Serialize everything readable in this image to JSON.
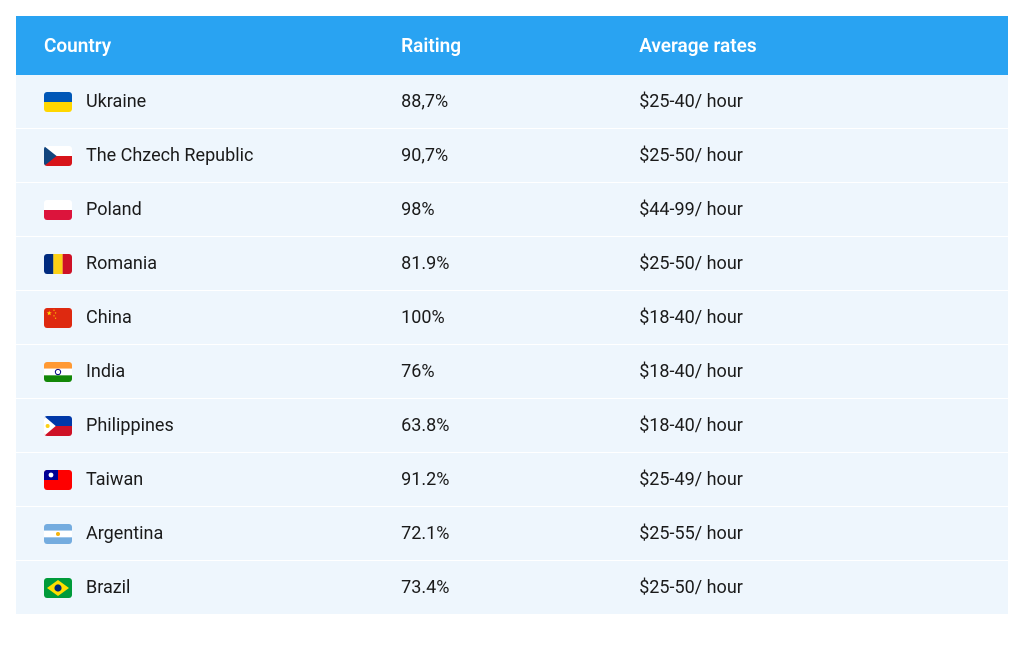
{
  "table": {
    "header_bg": "#29a3f2",
    "header_text_color": "#ffffff",
    "header_fontsize": 19,
    "row_bg": "#eef6fd",
    "row_text_color": "#1a1a1a",
    "row_fontsize": 18,
    "row_border_color": "#ffffff",
    "columns": [
      {
        "key": "country",
        "label": "Country"
      },
      {
        "key": "rating",
        "label": "Raiting"
      },
      {
        "key": "rates",
        "label": "Average rates"
      }
    ],
    "rows": [
      {
        "country": "Ukraine",
        "rating": "88,7%",
        "rates": "$25-40/ hour",
        "flag": "ukraine"
      },
      {
        "country": "The Chzech Republic",
        "rating": "90,7%",
        "rates": "$25-50/ hour",
        "flag": "czech"
      },
      {
        "country": "Poland",
        "rating": "98%",
        "rates": "$44-99/ hour",
        "flag": "poland"
      },
      {
        "country": "Romania",
        "rating": "81.9%",
        "rates": "$25-50/ hour",
        "flag": "romania"
      },
      {
        "country": "China",
        "rating": "100%",
        "rates": "$18-40/ hour",
        "flag": "china"
      },
      {
        "country": "India",
        "rating": "76%",
        "rates": "$18-40/ hour",
        "flag": "india"
      },
      {
        "country": "Philippines",
        "rating": "63.8%",
        "rates": "$18-40/ hour",
        "flag": "philippines"
      },
      {
        "country": "Taiwan",
        "rating": "91.2%",
        "rates": "$25-49/ hour",
        "flag": "taiwan"
      },
      {
        "country": "Argentina",
        "rating": "72.1%",
        "rates": "$25-55/ hour",
        "flag": "argentina"
      },
      {
        "country": "Brazil",
        "rating": "73.4%",
        "rates": "$25-50/ hour",
        "flag": "brazil"
      }
    ]
  },
  "flags": {
    "ukraine": {
      "type": "h-stripes",
      "colors": [
        "#0057b7",
        "#ffd700"
      ]
    },
    "czech": {
      "type": "czech",
      "colors": [
        "#ffffff",
        "#d7141a",
        "#11457e"
      ]
    },
    "poland": {
      "type": "h-stripes",
      "colors": [
        "#ffffff",
        "#dc143c"
      ]
    },
    "romania": {
      "type": "v-stripes",
      "colors": [
        "#002b7f",
        "#fcd116",
        "#ce1126"
      ]
    },
    "china": {
      "type": "china",
      "colors": [
        "#de2910",
        "#ffde00"
      ]
    },
    "india": {
      "type": "india",
      "colors": [
        "#ff9933",
        "#ffffff",
        "#138808",
        "#000080"
      ]
    },
    "philippines": {
      "type": "philippines",
      "colors": [
        "#0038a8",
        "#ce1126",
        "#ffffff",
        "#fcd116"
      ]
    },
    "taiwan": {
      "type": "taiwan",
      "colors": [
        "#fe0000",
        "#000095",
        "#ffffff"
      ]
    },
    "argentina": {
      "type": "argentina",
      "colors": [
        "#74acdf",
        "#ffffff",
        "#f6b40e"
      ]
    },
    "brazil": {
      "type": "brazil",
      "colors": [
        "#009b3a",
        "#fedf00",
        "#002776"
      ]
    }
  }
}
